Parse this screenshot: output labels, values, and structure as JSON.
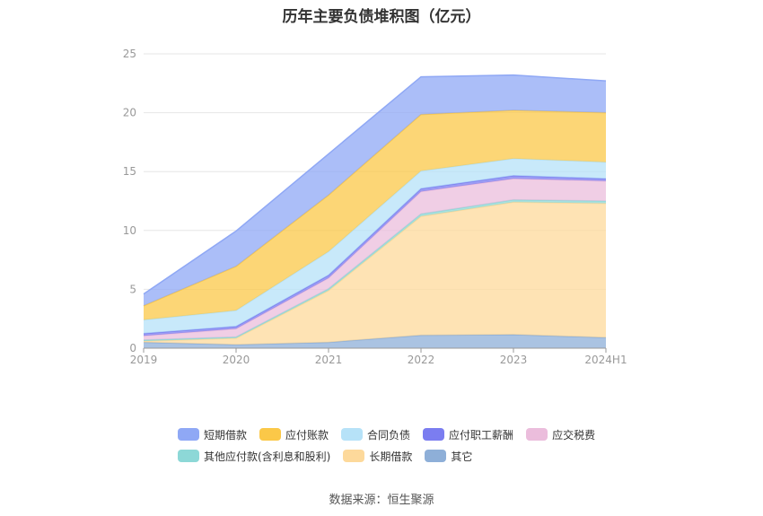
{
  "chart_data": {
    "type": "area",
    "stacked": true,
    "title": "历年主要负债堆积图（亿元）",
    "categories": [
      "2019",
      "2020",
      "2021",
      "2022",
      "2023",
      "2024H1"
    ],
    "ylim": [
      0,
      25
    ],
    "yticks": [
      0,
      5,
      10,
      15,
      20,
      25
    ],
    "series": [
      {
        "name": "其它",
        "color": "#8eafd8",
        "values": [
          0.5,
          0.3,
          0.5,
          1.1,
          1.15,
          0.9
        ]
      },
      {
        "name": "长期借款",
        "color": "#fdd99b",
        "values": [
          0.1,
          0.55,
          4.4,
          10.1,
          11.25,
          11.4
        ]
      },
      {
        "name": "其他应付款(含利息和股利)",
        "color": "#8dd8d7",
        "values": [
          0.1,
          0.1,
          0.15,
          0.2,
          0.2,
          0.2
        ]
      },
      {
        "name": "应交税费",
        "color": "#ebbddc",
        "values": [
          0.35,
          0.7,
          0.9,
          1.9,
          1.8,
          1.7
        ]
      },
      {
        "name": "应付职工薪酬",
        "color": "#7b7df0",
        "values": [
          0.2,
          0.2,
          0.25,
          0.25,
          0.25,
          0.2
        ]
      },
      {
        "name": "合同负债",
        "color": "#b6e2f8",
        "values": [
          1.15,
          1.35,
          2.0,
          1.5,
          1.45,
          1.4
        ]
      },
      {
        "name": "应付账款",
        "color": "#fbc848",
        "values": [
          1.2,
          3.75,
          4.8,
          4.8,
          4.1,
          4.2
        ]
      },
      {
        "name": "短期借款",
        "color": "#8fa8f5",
        "values": [
          1.0,
          3.0,
          3.5,
          3.2,
          3.0,
          2.7
        ]
      }
    ]
  },
  "legend": {
    "row1": [
      {
        "label": "短期借款",
        "color": "#8fa8f5"
      },
      {
        "label": "应付账款",
        "color": "#fbc848"
      },
      {
        "label": "合同负债",
        "color": "#b6e2f8"
      },
      {
        "label": "应付职工薪酬",
        "color": "#7b7df0"
      },
      {
        "label": "应交税费",
        "color": "#ebbddc"
      }
    ],
    "row2": [
      {
        "label": "其他应付款(含利息和股利)",
        "color": "#8dd8d7"
      },
      {
        "label": "长期借款",
        "color": "#fdd99b"
      },
      {
        "label": "其它",
        "color": "#8eafd8"
      }
    ]
  },
  "source": "数据来源：恒生聚源"
}
